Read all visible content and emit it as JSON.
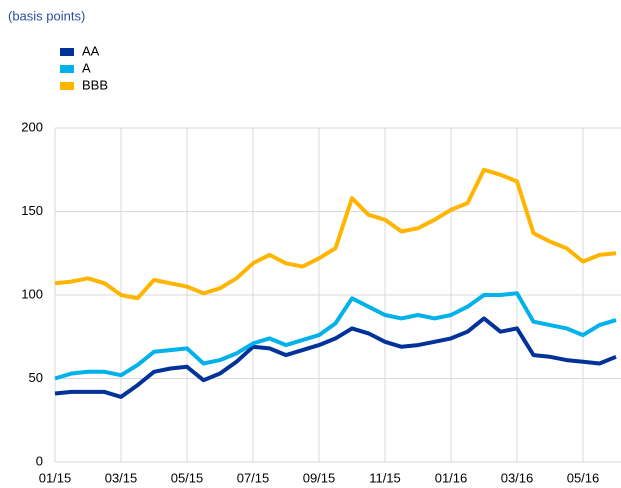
{
  "chart_data": {
    "type": "line",
    "subtitle": "(basis points)",
    "categories": [
      "01/15",
      null,
      null,
      null,
      "03/15",
      null,
      null,
      null,
      "05/15",
      null,
      null,
      null,
      "07/15",
      null,
      null,
      null,
      "09/15",
      null,
      null,
      null,
      "11/15",
      null,
      null,
      null,
      "01/16",
      null,
      null,
      null,
      "03/16",
      null,
      null,
      null,
      "05/16",
      null,
      null
    ],
    "series": [
      {
        "name": "AA",
        "color": "#003299",
        "values": [
          41,
          42,
          42,
          42,
          39,
          46,
          54,
          56,
          57,
          49,
          53,
          60,
          69,
          68,
          64,
          67,
          70,
          74,
          80,
          77,
          72,
          69,
          70,
          72,
          74,
          78,
          86,
          78,
          80,
          64,
          63,
          61,
          60,
          59,
          63
        ]
      },
      {
        "name": "A",
        "color": "#00b1ea",
        "values": [
          50,
          53,
          54,
          54,
          52,
          58,
          66,
          67,
          68,
          59,
          61,
          65,
          71,
          74,
          70,
          73,
          76,
          83,
          98,
          93,
          88,
          86,
          88,
          86,
          88,
          93,
          100,
          100,
          101,
          84,
          82,
          80,
          76,
          82,
          85
        ]
      },
      {
        "name": "BBB",
        "color": "#ffb400",
        "values": [
          107,
          108,
          110,
          107,
          100,
          98,
          109,
          107,
          105,
          101,
          104,
          110,
          119,
          124,
          119,
          117,
          122,
          128,
          158,
          148,
          145,
          138,
          140,
          145,
          151,
          155,
          175,
          172,
          168,
          137,
          132,
          128,
          120,
          124,
          125
        ]
      }
    ],
    "ylim": [
      0,
      200
    ],
    "yticks": [
      0,
      50,
      100,
      150,
      200
    ],
    "grid": true
  }
}
